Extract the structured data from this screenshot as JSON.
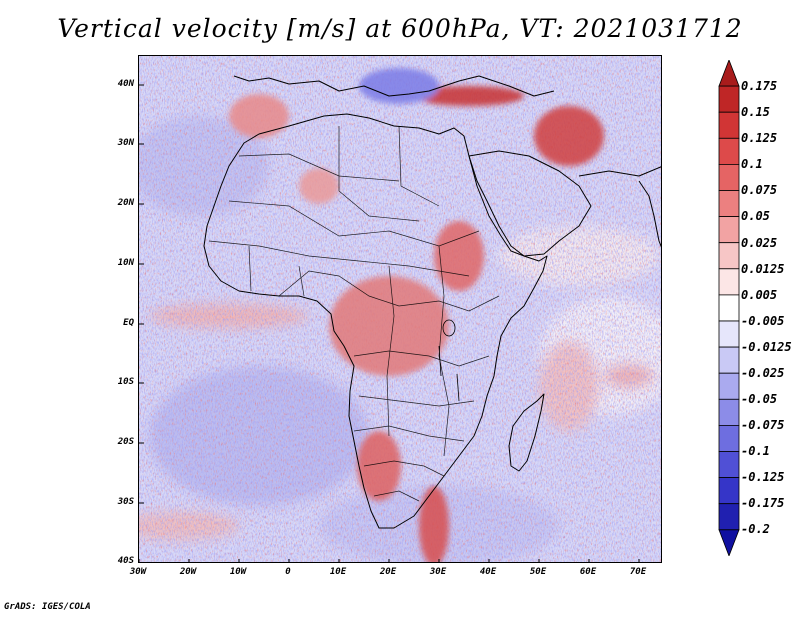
{
  "title": "Vertical velocity [m/s] at 600hPa, VT: 2021031712",
  "map": {
    "lat_labels": [
      "40N",
      "30N",
      "20N",
      "10N",
      "EQ",
      "10S",
      "20S",
      "30S",
      "40S"
    ],
    "lon_labels": [
      "30W",
      "20W",
      "10W",
      "0",
      "10E",
      "20E",
      "30E",
      "40E",
      "50E",
      "60E",
      "70E"
    ],
    "lon_range": [
      -30,
      75
    ],
    "lat_range": [
      -40,
      45
    ]
  },
  "colorbar": {
    "labels": [
      "0.175",
      "0.15",
      "0.125",
      "0.1",
      "0.075",
      "0.05",
      "0.025",
      "0.0125",
      "0.005",
      "-0.005",
      "-0.0125",
      "-0.025",
      "-0.05",
      "-0.075",
      "-0.1",
      "-0.125",
      "-0.175",
      "-0.2"
    ],
    "colors": [
      "#a81c1c",
      "#bf2626",
      "#d13535",
      "#dd4a4a",
      "#e56464",
      "#ec8080",
      "#f2a3a3",
      "#f7c6c6",
      "#fce6e6",
      "#ffffff",
      "#e6e6fb",
      "#c9c9f5",
      "#aaaaef",
      "#8c8ce8",
      "#6e6ee0",
      "#5050d6",
      "#3535c8",
      "#2020b0",
      "#1010a0"
    ]
  },
  "credit": "GrADS: IGES/COLA"
}
